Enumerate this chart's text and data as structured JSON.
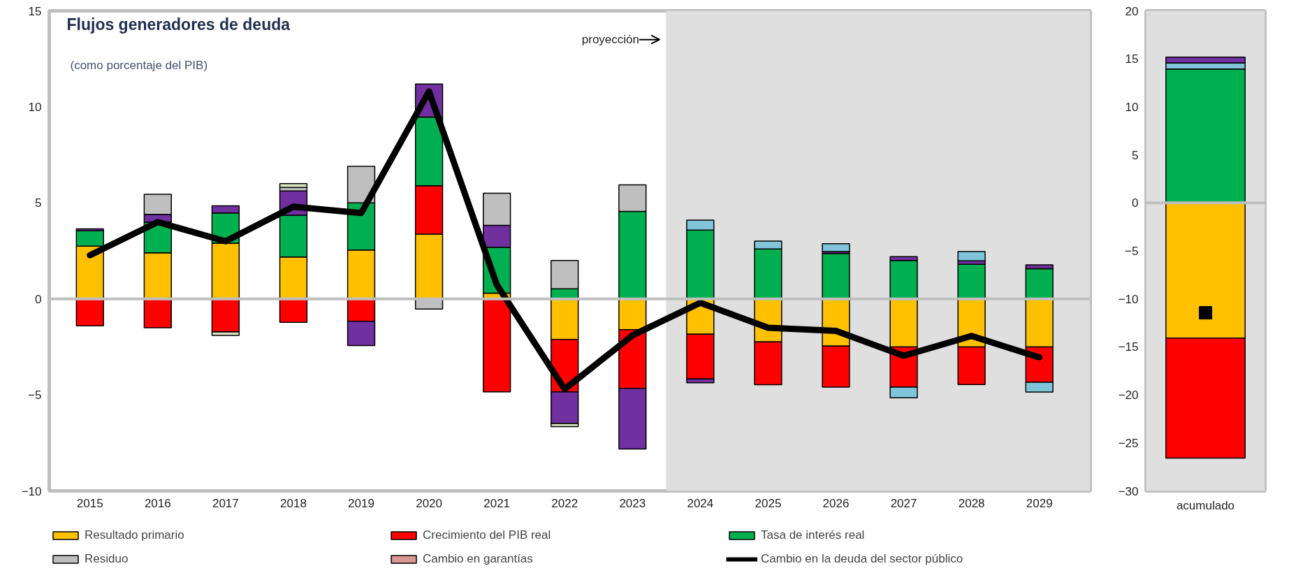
{
  "chart_data": [
    {
      "type": "bar",
      "stacked": true,
      "title": "Flujos generadores de deuda",
      "subtitle": "(como porcentaje del PIB)",
      "annotations": [
        "proyección"
      ],
      "x": [
        2015,
        2016,
        2017,
        2018,
        2019,
        2020,
        2021,
        2022,
        2023,
        2024,
        2025,
        2026,
        2027,
        2028,
        2029
      ],
      "xlim": [
        2014.4,
        2029.75
      ],
      "xticks": [
        2015,
        2016,
        2017,
        2018,
        2019,
        2020,
        2021,
        2022,
        2023,
        2024,
        2025,
        2026,
        2027,
        2028,
        2029
      ],
      "ylim": [
        -10,
        15
      ],
      "yticks": [
        -10,
        -5,
        0,
        5,
        10,
        15
      ],
      "grid": false,
      "legend": "bottom",
      "ref_lines": [
        {
          "axis": "y",
          "value": 0,
          "color": "#bfbfbf"
        }
      ],
      "bands": [
        {
          "axis": "x",
          "from": 2023.5,
          "to": 2029.75,
          "color": "#dfdfdf"
        }
      ],
      "series": [
        {
          "name": "Resultado primario",
          "color": "#ffc000",
          "values": [
            2.75,
            2.4,
            2.9,
            2.18,
            2.55,
            3.37,
            0.3,
            -2.11,
            -1.6,
            -1.84,
            -2.24,
            -2.46,
            -2.5,
            -2.5,
            -2.5
          ]
        },
        {
          "name": "Crecimiento del PIB real",
          "color": "#ff0000",
          "values": [
            -1.4,
            -1.5,
            -1.72,
            -1.22,
            -1.17,
            2.52,
            -4.84,
            -2.73,
            -3.06,
            -2.33,
            -2.23,
            -2.14,
            -2.1,
            -1.96,
            -1.84
          ]
        },
        {
          "name": "Tasa de interés real",
          "color": "#00b050",
          "values": [
            0.8,
            1.6,
            1.57,
            2.18,
            2.45,
            3.58,
            2.38,
            0.53,
            4.56,
            3.58,
            2.6,
            2.36,
            2.0,
            1.8,
            1.57
          ]
        },
        {
          "color": "#7030a0",
          "values": [
            0.1,
            0.4,
            0.38,
            1.26,
            -1.26,
            1.72,
            1.15,
            -1.65,
            -3.16,
            -0.2,
            null,
            0.1,
            0.2,
            0.18,
            0.2
          ]
        },
        {
          "color": "#7fc4d9",
          "values": [
            null,
            null,
            null,
            null,
            null,
            null,
            null,
            null,
            null,
            0.52,
            0.41,
            0.41,
            -0.55,
            0.48,
            -0.51
          ]
        },
        {
          "name": "Residuo",
          "color": "#bfbfbf",
          "values": [
            null,
            1.05,
            null,
            0.18,
            1.9,
            -0.53,
            1.67,
            1.47,
            1.38,
            null,
            null,
            null,
            null,
            null,
            null
          ]
        },
        {
          "color": "#d7e4bd",
          "values": [
            null,
            null,
            -0.18,
            0.2,
            null,
            null,
            null,
            -0.16,
            null,
            null,
            null,
            null,
            null,
            null,
            null
          ]
        },
        {
          "name": "Cambio en garantías",
          "color": "#d99694",
          "values": [
            null,
            null,
            null,
            null,
            null,
            null,
            null,
            null,
            null,
            null,
            null,
            null,
            null,
            null,
            null
          ]
        },
        {
          "type": "line",
          "name": "Cambio en la deuda del sector público",
          "color": "#000000",
          "values": [
            2.27,
            4.0,
            3.0,
            4.8,
            4.47,
            10.8,
            0.73,
            -4.7,
            -1.9,
            -0.2,
            -1.5,
            -1.67,
            -2.96,
            -1.93,
            -3.05
          ]
        }
      ]
    },
    {
      "type": "bar",
      "stacked": true,
      "categories": [
        "acumulado"
      ],
      "ylim": [
        -30,
        20
      ],
      "yticks": [
        -30,
        -25,
        -20,
        -15,
        -10,
        -5,
        0,
        5,
        10,
        15,
        20
      ],
      "grid": false,
      "ref_lines": [
        {
          "axis": "y",
          "value": 0,
          "color": "#bfbfbf"
        }
      ],
      "bands": [
        {
          "axis": "y",
          "from": -30,
          "to": 20,
          "color": "#dfdfdf"
        }
      ],
      "series": [
        {
          "color": "#ffc000",
          "values": [
            -14.08
          ]
        },
        {
          "color": "#ff0000",
          "values": [
            -12.5
          ]
        },
        {
          "color": "#00b050",
          "values": [
            13.94
          ]
        },
        {
          "color": "#7fc4d9",
          "values": [
            0.63
          ]
        },
        {
          "color": "#7030a0",
          "values": [
            0.6
          ]
        },
        {
          "type": "scatter",
          "marker": "square",
          "color": "#000000",
          "values": [
            -11.45
          ]
        }
      ]
    }
  ]
}
